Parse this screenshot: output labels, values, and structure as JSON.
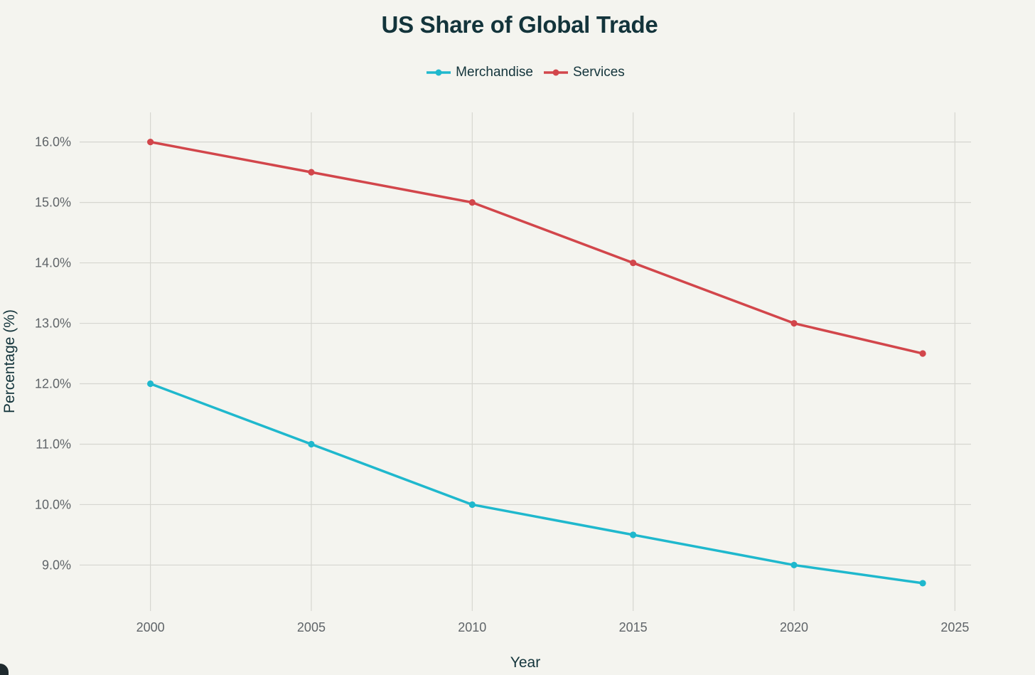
{
  "chart_data": {
    "type": "line",
    "title": "US Share of Global Trade",
    "xlabel": "Year",
    "ylabel": "Percentage (%)",
    "x": [
      2000,
      2005,
      2010,
      2015,
      2020,
      2024
    ],
    "xticks": [
      2000,
      2005,
      2010,
      2015,
      2020,
      2025
    ],
    "xtick_labels": [
      "2000",
      "2005",
      "2010",
      "2015",
      "2020",
      "2025"
    ],
    "yticks": [
      9,
      10,
      11,
      12,
      13,
      14,
      15,
      16
    ],
    "ytick_labels": [
      "9.0%",
      "10.0%",
      "11.0%",
      "12.0%",
      "13.0%",
      "14.0%",
      "15.0%",
      "16.0%"
    ],
    "xlim": [
      1997.8,
      2025.5
    ],
    "ylim": [
      8.24,
      16.49
    ],
    "grid": true,
    "legend_position": "top-center",
    "series": [
      {
        "name": "Merchandise",
        "color": "#1fb8cd",
        "values": [
          12.0,
          11.0,
          10.0,
          9.5,
          9.0,
          8.7
        ]
      },
      {
        "name": "Services",
        "color": "#d2464b",
        "values": [
          16.0,
          15.5,
          15.0,
          14.0,
          13.0,
          12.5
        ]
      }
    ]
  }
}
